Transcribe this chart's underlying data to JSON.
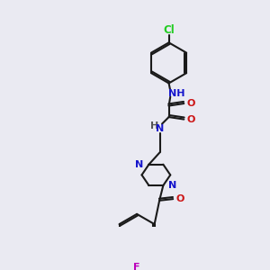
{
  "background_color": "#eaeaf2",
  "bond_color": "#1a1a1a",
  "atom_colors": {
    "N": "#1414cc",
    "O": "#cc1414",
    "Cl": "#22cc22",
    "F": "#bb00bb",
    "H": "#555555"
  },
  "figsize": [
    3.0,
    3.0
  ],
  "dpi": 100
}
